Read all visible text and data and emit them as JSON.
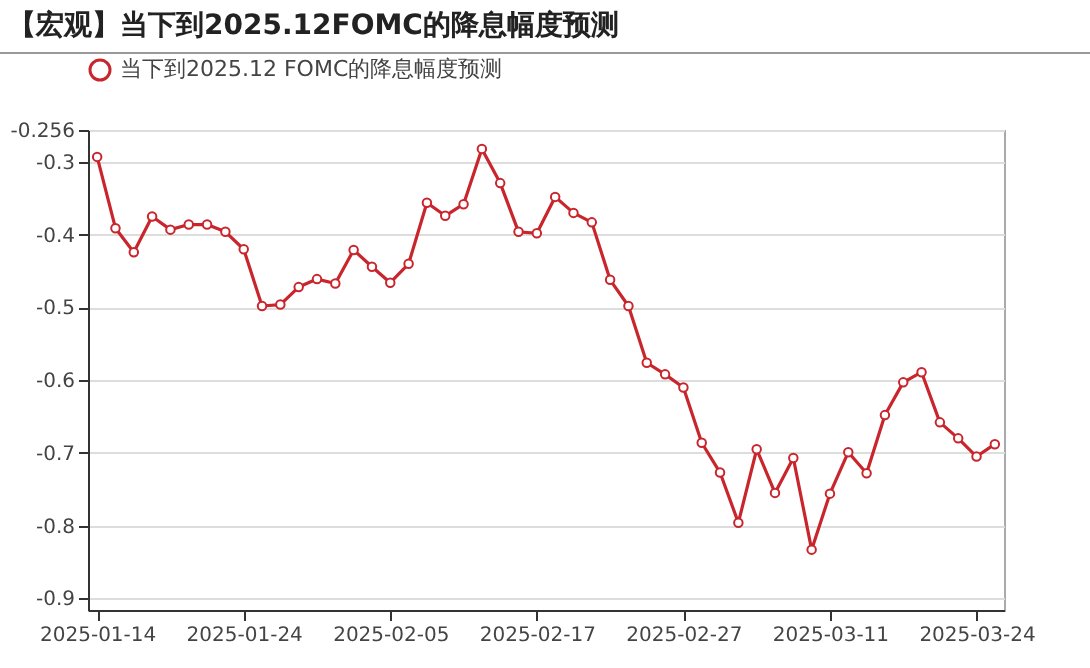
{
  "chart_data": {
    "type": "line",
    "title": "【宏观】当下到2025.12FOMC的降息幅度预测",
    "categories": [
      "2025-01-14",
      null,
      null,
      null,
      null,
      null,
      null,
      null,
      "2025-01-24",
      null,
      null,
      null,
      null,
      null,
      null,
      null,
      "2025-02-05",
      null,
      null,
      null,
      null,
      null,
      null,
      null,
      "2025-02-17",
      null,
      null,
      null,
      null,
      null,
      null,
      null,
      "2025-02-27",
      null,
      null,
      null,
      null,
      null,
      null,
      null,
      "2025-03-11",
      null,
      null,
      null,
      null,
      null,
      null,
      null,
      "2025-03-24",
      null
    ],
    "series": [
      {
        "name": "当下到2025.12 FOMC的降息幅度预测",
        "color": "#c9252c",
        "values": [
          -0.293,
          -0.391,
          -0.424,
          -0.375,
          -0.393,
          -0.386,
          -0.386,
          -0.396,
          -0.42,
          -0.498,
          -0.496,
          -0.472,
          -0.461,
          -0.467,
          -0.421,
          -0.444,
          -0.466,
          -0.44,
          -0.356,
          -0.374,
          -0.358,
          -0.282,
          -0.329,
          -0.396,
          -0.398,
          -0.348,
          -0.37,
          -0.383,
          -0.462,
          -0.498,
          -0.576,
          -0.592,
          -0.61,
          -0.686,
          -0.727,
          -0.796,
          -0.695,
          -0.755,
          -0.707,
          -0.833,
          -0.756,
          -0.699,
          -0.728,
          -0.648,
          -0.603,
          -0.589,
          -0.658,
          -0.68,
          -0.705,
          -0.688
        ]
      }
    ],
    "ylim": [
      -0.916,
      -0.256
    ],
    "yticks": [
      -0.256,
      -0.3,
      -0.4,
      -0.5,
      -0.6,
      -0.7,
      -0.8,
      -0.9
    ],
    "grid": "y",
    "legend": "top",
    "marker": "circle",
    "line_style": "solid"
  }
}
